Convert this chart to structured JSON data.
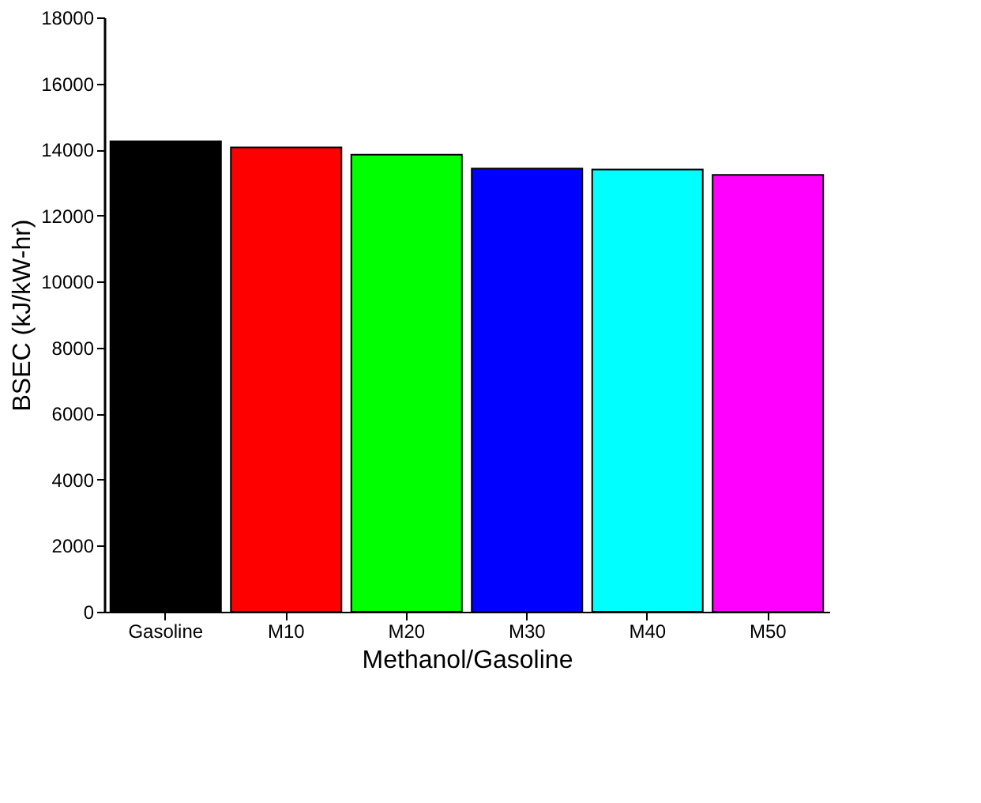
{
  "chart_data": {
    "type": "bar",
    "xlabel": "Methanol/Gasoline",
    "ylabel": "BSEC (kJ/kW-hr)",
    "categories": [
      "Gasoline",
      "M10",
      "M20",
      "M30",
      "M40",
      "M50"
    ],
    "values": [
      14250,
      14060,
      13840,
      13420,
      13390,
      13230
    ],
    "colors": [
      "#000000",
      "#ff0000",
      "#00ff00",
      "#0000ff",
      "#00ffff",
      "#ff00ff"
    ],
    "ylim": [
      0,
      18000
    ],
    "yticks": [
      0,
      2000,
      4000,
      6000,
      8000,
      10000,
      12000,
      14000,
      16000,
      18000
    ],
    "grid": false,
    "legend": false
  }
}
